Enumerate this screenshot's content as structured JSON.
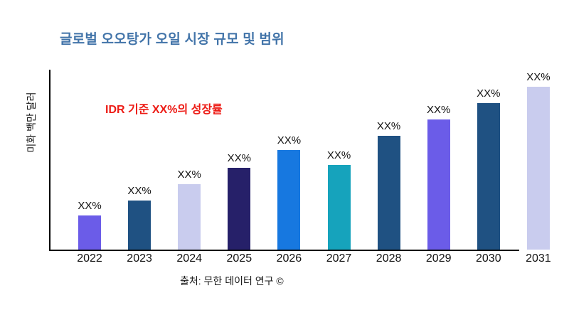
{
  "title": {
    "text": "글로벌 오오탕가 오일 시장 규모 및 범위",
    "color": "#4274A9"
  },
  "annotation": {
    "text": "IDR 기준 XX%의 성장률",
    "color": "#ED1C16"
  },
  "y_axis": {
    "label": "미화 백만 달러"
  },
  "source": {
    "text": "출처: 무한 데이터 연구 ©"
  },
  "chart_data": {
    "type": "bar",
    "title": "글로벌 오오탕가 오일 시장 규모 및 범위",
    "xlabel": "",
    "ylabel": "미화 백만 달러",
    "categories": [
      "2022",
      "2023",
      "2024",
      "2025",
      "2026",
      "2027",
      "2028",
      "2029",
      "2030",
      "2031"
    ],
    "values": [
      21,
      30,
      40,
      50,
      61,
      52,
      70,
      80,
      90,
      100
    ],
    "value_labels": [
      "XX%",
      "XX%",
      "XX%",
      "XX%",
      "XX%",
      "XX%",
      "XX%",
      "XX%",
      "XX%",
      "XX%"
    ],
    "bar_colors": [
      "#6B5CE8",
      "#1F5182",
      "#C9CCEE",
      "#262069",
      "#1778E0",
      "#16A3BC",
      "#1F5182",
      "#6B5CE8",
      "#1F5182",
      "#C9CCEE"
    ],
    "ylim": [
      0,
      110
    ],
    "grid": false,
    "legend": "none",
    "notes": "values are relative bar heights (units hidden; all data labels show XX%)"
  }
}
